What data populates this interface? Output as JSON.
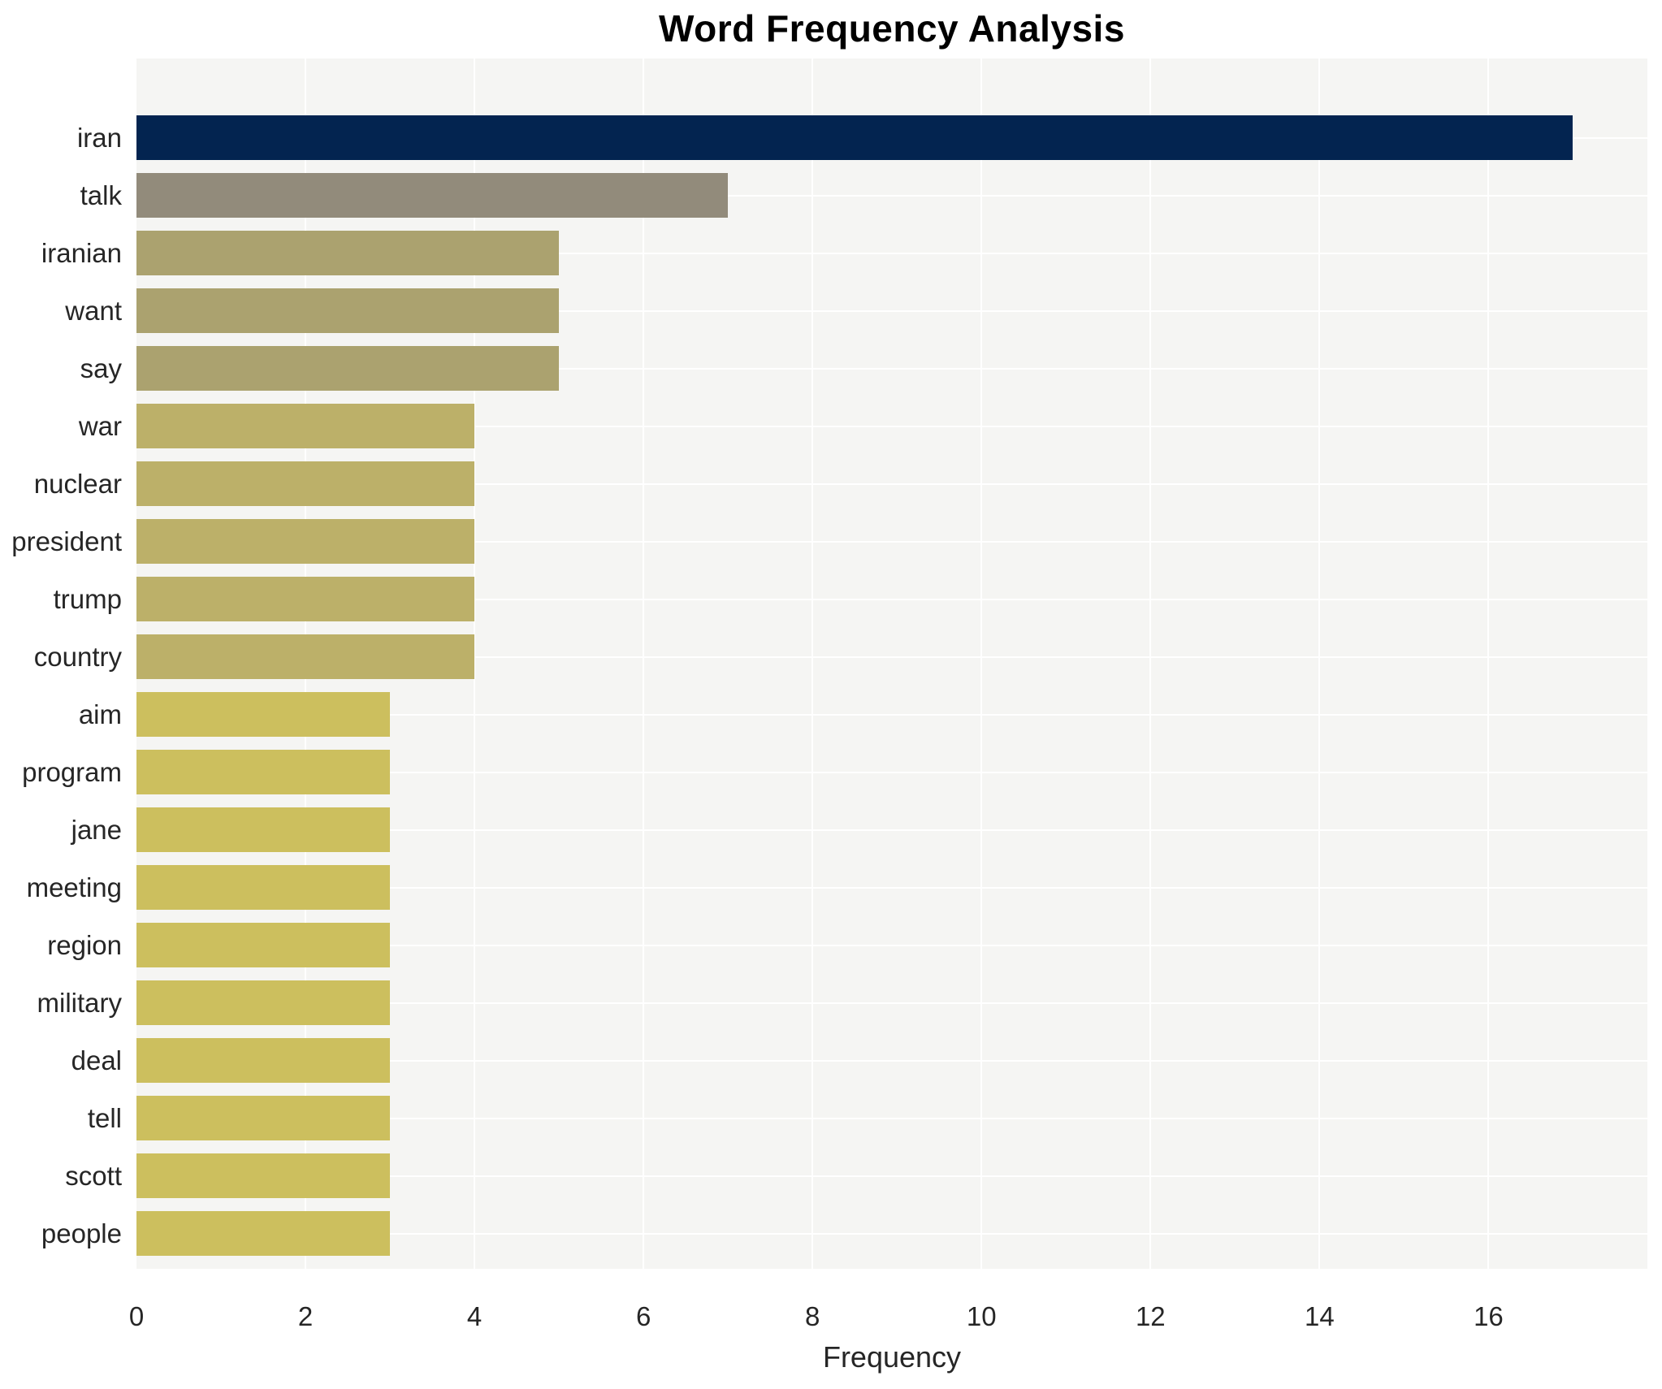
{
  "chart_data": {
    "type": "bar",
    "orientation": "horizontal",
    "title": "Word Frequency Analysis",
    "xlabel": "Frequency",
    "ylabel": "",
    "categories": [
      "iran",
      "talk",
      "iranian",
      "want",
      "say",
      "war",
      "nuclear",
      "president",
      "trump",
      "country",
      "aim",
      "program",
      "jane",
      "meeting",
      "region",
      "military",
      "deal",
      "tell",
      "scott",
      "people"
    ],
    "values": [
      17,
      7,
      5,
      5,
      5,
      4,
      4,
      4,
      4,
      4,
      3,
      3,
      3,
      3,
      3,
      3,
      3,
      3,
      3,
      3
    ],
    "bar_colors": [
      "#032450",
      "#928b7b",
      "#aba26f",
      "#aba26f",
      "#aba26f",
      "#bcb069",
      "#bcb069",
      "#bcb069",
      "#bcb069",
      "#bcb069",
      "#ccbf5e",
      "#ccbf5e",
      "#ccbf5e",
      "#ccbf5e",
      "#ccbf5e",
      "#ccbf5e",
      "#ccbf5e",
      "#ccbf5e",
      "#ccbf5e",
      "#ccbf5e"
    ],
    "xlim": [
      0,
      17.88
    ],
    "xticks": [
      0,
      2,
      4,
      6,
      8,
      10,
      12,
      14,
      16
    ],
    "grid": {
      "vertical": true,
      "horizontal": true,
      "color": "#ffffff"
    },
    "panel_background": "#f5f5f3",
    "legend": null
  }
}
